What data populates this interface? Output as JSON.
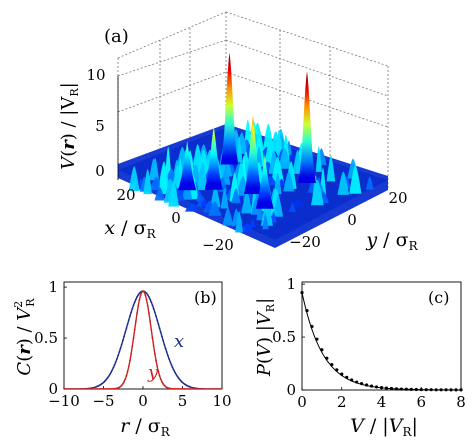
{
  "panels": {
    "a": {
      "label": "(a)",
      "z_axis": {
        "ticks": [
          "0",
          "5",
          "10"
        ],
        "label_main": "V",
        "label_bold": "r",
        "label_rest": "/ |V",
        "label_sub": "R",
        "label_close": "|"
      },
      "x_axis": {
        "ticks": [
          "20",
          "0",
          "−20"
        ],
        "label_main": "x",
        "label_rest": "/ σ",
        "label_sub": "R"
      },
      "y_axis": {
        "ticks": [
          "−20",
          "0",
          "20"
        ],
        "label_main": "y",
        "label_rest": "/ σ",
        "label_sub": "R"
      }
    },
    "b": {
      "label": "(b)",
      "series_x_name": "x",
      "series_y_name": "y",
      "xlabel_main": "r",
      "xlabel_rest": "/ σ",
      "xlabel_sub": "R",
      "ylabel": "C(r) / V_R^2"
    },
    "c": {
      "label": "(c)",
      "xlabel": "V / |V_R|",
      "ylabel": "P(V) |V_R|"
    }
  },
  "chart_data": [
    {
      "type": "heatmap",
      "panel": "a",
      "description_style": "3d surface of a random potential",
      "zlim": [
        0,
        11
      ],
      "z_ticks": [
        0,
        5,
        10
      ],
      "x_ticks": [
        20,
        0,
        -20
      ],
      "y_ticks": [
        -20,
        0,
        20
      ],
      "colormap": "jet",
      "peaks": [
        {
          "x": 20,
          "y": 10,
          "z": 11
        },
        {
          "x": -5,
          "y": 15,
          "z": 11
        },
        {
          "x": 0,
          "y": 0,
          "z": 7.5
        },
        {
          "x": 10,
          "y": -5,
          "z": 6
        },
        {
          "x": -10,
          "y": -5,
          "z": 5
        },
        {
          "x": 15,
          "y": -10,
          "z": 4.5
        }
      ]
    },
    {
      "type": "line",
      "panel": "b",
      "xlim": [
        -10,
        10
      ],
      "ylim": [
        0,
        1.05
      ],
      "x_ticks": [
        -10,
        -5,
        0,
        5,
        10
      ],
      "y_ticks": [
        0,
        0.5,
        1
      ],
      "series": [
        {
          "name": "x",
          "color": "#1f2e8c",
          "peak": 0.96,
          "sigma": 2.15
        },
        {
          "name": "y",
          "color": "#cc2222",
          "peak": 0.96,
          "sigma": 1.05
        }
      ]
    },
    {
      "type": "scatter",
      "panel": "c",
      "xlim": [
        0,
        8
      ],
      "ylim": [
        0,
        1.02
      ],
      "x_ticks": [
        0,
        2,
        4,
        6,
        8
      ],
      "y_ticks": [
        0,
        0.5,
        1
      ],
      "series": [
        {
          "name": "",
          "color": "#000000",
          "x": [
            0,
            0.25,
            0.5,
            0.75,
            1,
            1.25,
            1.5,
            1.75,
            2,
            2.25,
            2.5,
            2.75,
            3,
            3.25,
            3.5,
            3.75,
            4,
            4.25,
            4.5,
            4.75,
            5,
            5.25,
            5.5,
            5.75,
            6,
            6.25,
            6.5,
            6.75,
            7,
            7.25,
            7.5,
            7.75,
            8
          ],
          "y": [
            0.92,
            0.75,
            0.6,
            0.48,
            0.38,
            0.3,
            0.24,
            0.19,
            0.15,
            0.12,
            0.095,
            0.075,
            0.06,
            0.047,
            0.037,
            0.029,
            0.023,
            0.018,
            0.014,
            0.011,
            0.009,
            0.007,
            0.006,
            0.005,
            0.004,
            0.003,
            0.003,
            0.002,
            0.002,
            0.002,
            0.001,
            0.001,
            0.001
          ]
        }
      ]
    }
  ]
}
